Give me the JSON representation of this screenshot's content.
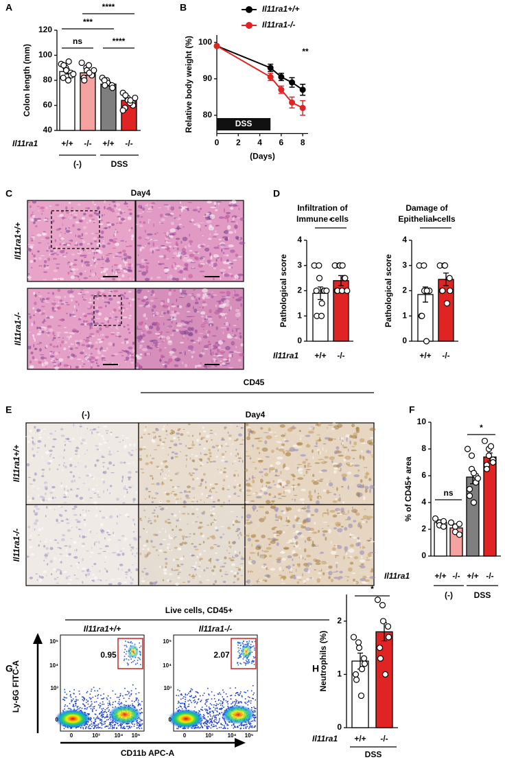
{
  "chart_data": [
    {
      "type": "bar",
      "ylabel": "Colon length (mm)",
      "row_label": "Il11ra1",
      "categories": [
        "+/+",
        "-/-",
        "+/+",
        "-/-"
      ],
      "groups": [
        "(-)",
        "DSS"
      ],
      "values": [
        87,
        86,
        77,
        64
      ],
      "errors": [
        2,
        2,
        1.5,
        1.5
      ],
      "colors": [
        "#ffffff",
        "#f4a3a0",
        "#7f7f7f",
        "#e02424"
      ],
      "points": [
        [
          93,
          90,
          88,
          86,
          84,
          82,
          92,
          80,
          95,
          85
        ],
        [
          94,
          90,
          88,
          86,
          84,
          82,
          80,
          92,
          86,
          88
        ],
        [
          82,
          80,
          78,
          76,
          74,
          80,
          76
        ],
        [
          70,
          66,
          64,
          62,
          60,
          58,
          68,
          62,
          64,
          66,
          56
        ]
      ],
      "ylim": [
        40,
        120
      ],
      "yticks": [
        40,
        60,
        80,
        100,
        120
      ],
      "significance": [
        "ns",
        "***",
        "****",
        "****"
      ]
    },
    {
      "type": "line",
      "ylabel": "Relative body weight (%)",
      "xlabel": "(Days)",
      "x": [
        0,
        5,
        6,
        7,
        8
      ],
      "series": [
        {
          "name": "Il11ra1+/+",
          "color": "#000000",
          "values": [
            99,
            93,
            90.5,
            89,
            87
          ],
          "errors": [
            0,
            1,
            1,
            1.3,
            1.5
          ]
        },
        {
          "name": "Il11ra1-/-",
          "color": "#e02424",
          "values": [
            99,
            90.5,
            87,
            83.5,
            82
          ],
          "errors": [
            0,
            1,
            1,
            1.5,
            2
          ]
        }
      ],
      "band": {
        "label": "DSS",
        "x": [
          0,
          5
        ]
      },
      "annotation": "**",
      "xlim": [
        0,
        8.5
      ],
      "xticks": [
        0,
        2,
        4,
        6,
        8
      ],
      "ylim": [
        75,
        102
      ],
      "yticks": [
        80,
        90,
        100
      ]
    },
    {
      "type": "bar",
      "title": [
        "Infiltration of",
        "Immune cells"
      ],
      "ylabel": "Pathological score",
      "row_label": "Il11ra1",
      "categories": [
        "+/+",
        "-/-"
      ],
      "values": [
        1.9,
        2.4
      ],
      "errors": [
        0.25,
        0.2
      ],
      "colors": [
        "#ffffff",
        "#e02424"
      ],
      "points": [
        [
          3,
          3,
          2.5,
          2,
          2,
          2,
          1,
          1,
          1.5,
          2
        ],
        [
          3,
          3,
          3,
          2.5,
          2.5,
          2,
          2,
          2,
          3,
          2
        ]
      ],
      "ylim": [
        0,
        4
      ],
      "yticks": [
        0,
        1,
        2,
        3,
        4
      ],
      "significance": [
        "*"
      ]
    },
    {
      "type": "bar",
      "title": [
        "Damage of",
        "Epithelial cells"
      ],
      "ylabel": "Pathological score",
      "categories": [
        "+/+",
        "-/-"
      ],
      "values": [
        1.85,
        2.45
      ],
      "errors": [
        0.3,
        0.25
      ],
      "colors": [
        "#ffffff",
        "#e02424"
      ],
      "points": [
        [
          3,
          3,
          2,
          2,
          2,
          1,
          1,
          0,
          2
        ],
        [
          3,
          3,
          3,
          2.5,
          2,
          2,
          2,
          1.5
        ]
      ],
      "ylim": [
        0,
        4
      ],
      "yticks": [
        0,
        1,
        2,
        3,
        4
      ],
      "significance": [
        "*"
      ]
    },
    {
      "type": "bar",
      "ylabel": "% of CD45+ area",
      "row_label": "Il11ra1",
      "categories": [
        "+/+",
        "-/-",
        "+/+",
        "-/-"
      ],
      "groups": [
        "(-)",
        "DSS"
      ],
      "values": [
        2.5,
        2.1,
        5.9,
        7.4
      ],
      "errors": [
        0.2,
        0.3,
        0.5,
        0.3
      ],
      "colors": [
        "#ffffff",
        "#f4a3a0",
        "#7f7f7f",
        "#e02424"
      ],
      "points": [
        [
          2.8,
          2.5,
          2.3,
          2.2,
          2.6
        ],
        [
          2.5,
          2.2,
          1.8,
          1.6,
          2.4
        ],
        [
          8,
          7.5,
          6.5,
          6,
          5.5,
          5,
          4.5,
          4,
          6.2,
          5.8
        ],
        [
          8.6,
          8,
          7.5,
          7.2,
          7,
          6.8,
          6.5,
          8.2
        ]
      ],
      "ylim": [
        0,
        10
      ],
      "yticks": [
        0,
        2,
        4,
        6,
        8,
        10
      ],
      "significance": [
        "ns",
        "*"
      ]
    },
    {
      "type": "bar",
      "ylabel": "Neutrophils (%)",
      "row_label": "Il11ra1",
      "categories": [
        "+/+",
        "-/-"
      ],
      "groups": [
        "DSS"
      ],
      "values": [
        1.25,
        1.8
      ],
      "errors": [
        0.15,
        0.17
      ],
      "colors": [
        "#ffffff",
        "#e02424"
      ],
      "points": [
        [
          1.7,
          1.6,
          1.5,
          1.3,
          1.2,
          1.0,
          0.9,
          0.6,
          1.1
        ],
        [
          2.4,
          2.3,
          2.0,
          1.9,
          1.7,
          1.5,
          1.3,
          1.0
        ]
      ],
      "ylim": [
        0,
        2.5
      ],
      "yticks": [
        0,
        1,
        2
      ],
      "significance": [
        "*"
      ]
    }
  ],
  "panels": {
    "letters": [
      "A",
      "B",
      "C",
      "D",
      "E",
      "F",
      "G",
      "H"
    ],
    "C": {
      "title": "Day4",
      "rows": [
        "Il11ra1+/+",
        "Il11ra1-/-"
      ]
    },
    "E": {
      "marker": "CD45",
      "columns": [
        "(-)",
        "Day4"
      ],
      "rows": [
        "Il11ra1+/+",
        "Il11ra1-/-"
      ]
    },
    "G": {
      "header": "Live cells, CD45+",
      "plots": [
        {
          "title": "Il11ra1+/+",
          "gate": 0.95
        },
        {
          "title": "Il11ra1-/-",
          "gate": 2.07
        }
      ],
      "ylabel": "Ly-6G FITC-A",
      "xlabel": "CD11b APC-A",
      "ticks": [
        "0",
        "10³",
        "10⁴",
        "10⁵"
      ]
    }
  }
}
